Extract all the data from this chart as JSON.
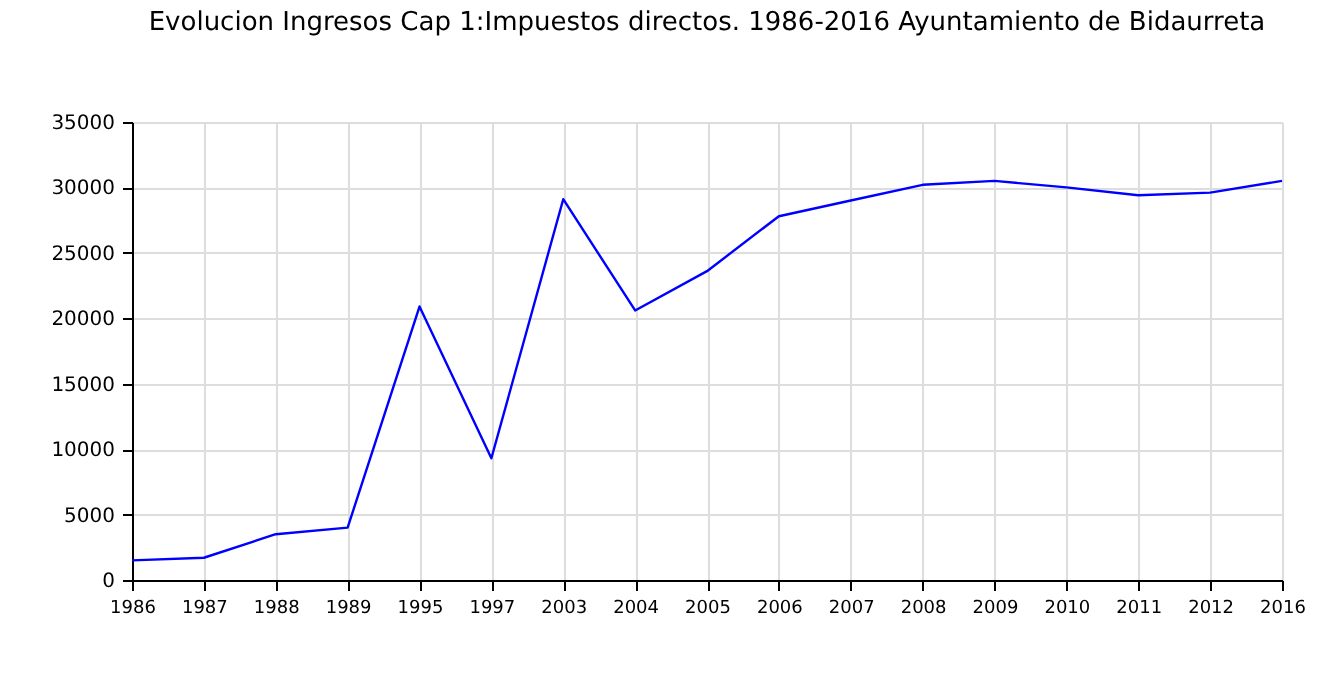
{
  "chart_data": {
    "type": "line",
    "title": "Evolucion Ingresos Cap 1:Impuestos directos. 1986-2016 Ayuntamiento de Bidaurreta",
    "categories": [
      "1986",
      "1987",
      "1988",
      "1989",
      "1995",
      "1997",
      "2003",
      "2004",
      "2005",
      "2006",
      "2007",
      "2008",
      "2009",
      "2010",
      "2011",
      "2012",
      "2016"
    ],
    "series": [
      {
        "color": "#0000ff",
        "values": [
          1500,
          1700,
          3500,
          4000,
          20900,
          9300,
          29100,
          20600,
          23600,
          27800,
          29000,
          30200,
          30500,
          30000,
          29400,
          29600,
          30500
        ]
      }
    ],
    "ylim": [
      0,
      35000
    ],
    "yticks": [
      0,
      5000,
      10000,
      15000,
      20000,
      25000,
      30000,
      35000
    ],
    "grid": true,
    "legend": false,
    "marker": "none",
    "line_style": "solid"
  }
}
